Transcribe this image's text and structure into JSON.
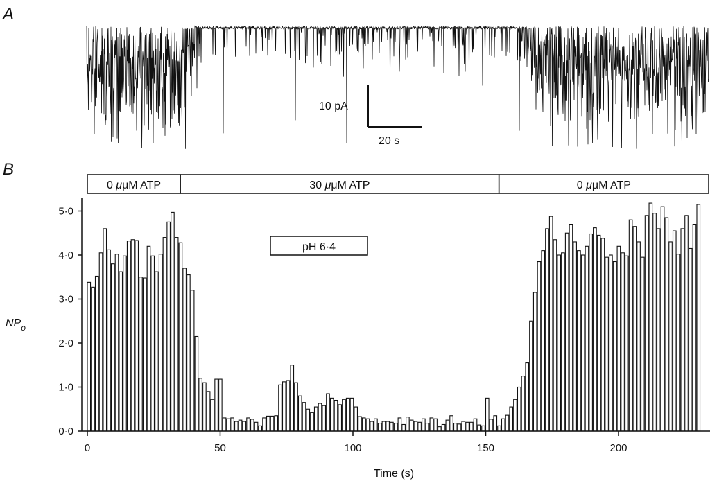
{
  "panel_a": {
    "letter": "A",
    "scale_bar_y_label": "10 pA",
    "scale_bar_x_label": "20 s"
  },
  "panel_b": {
    "letter": "B",
    "atp_bar": [
      {
        "label_value": "0",
        "label_unit": "μM ATP",
        "t_start": 0,
        "t_end": 35
      },
      {
        "label_value": "30",
        "label_unit": "μM ATP",
        "t_start": 35,
        "t_end": 155
      },
      {
        "label_value": "0",
        "label_unit": "μM ATP",
        "t_start": 155,
        "t_end": 235
      }
    ],
    "ph_label": "pH 6·4",
    "y_axis_main": "NP",
    "y_axis_sub": "o",
    "x_axis_title": "Time (s)"
  },
  "chart_data": [
    {
      "type": "line",
      "title": "",
      "description_panel": "A",
      "xlabel": "",
      "ylabel": "",
      "scale_bar": {
        "current_pA": 10,
        "time_s": 20
      }
    },
    {
      "type": "bar",
      "title": "",
      "xlabel": "Time (s)",
      "ylabel": "NPo",
      "xlim": [
        0,
        235
      ],
      "ylim": [
        0,
        5.2
      ],
      "bin_width_s": 1.5,
      "x_ticks": [
        0,
        50,
        100,
        150,
        200
      ],
      "x_tick_labels": [
        "0",
        "50",
        "100",
        "150",
        "200"
      ],
      "y_ticks": [
        0,
        1,
        2,
        3,
        4,
        5
      ],
      "y_tick_labels": [
        "0·0",
        "1·0",
        "2·0",
        "3·0",
        "4·0",
        "5·0"
      ],
      "values": [
        3.38,
        3.27,
        3.52,
        4.05,
        4.6,
        4.12,
        3.8,
        4.02,
        3.62,
        3.98,
        4.32,
        4.35,
        4.33,
        3.5,
        3.48,
        4.2,
        3.98,
        3.62,
        4.02,
        4.4,
        4.75,
        4.97,
        4.4,
        4.28,
        3.7,
        3.55,
        3.2,
        2.15,
        1.2,
        1.1,
        0.9,
        0.72,
        1.18,
        1.18,
        0.3,
        0.28,
        0.3,
        0.22,
        0.25,
        0.22,
        0.3,
        0.27,
        0.2,
        0.12,
        0.3,
        0.34,
        0.34,
        0.35,
        1.05,
        1.12,
        1.15,
        1.5,
        1.1,
        0.8,
        0.65,
        0.5,
        0.42,
        0.55,
        0.63,
        0.58,
        0.85,
        0.75,
        0.7,
        0.6,
        0.72,
        0.75,
        0.75,
        0.55,
        0.33,
        0.3,
        0.28,
        0.22,
        0.28,
        0.18,
        0.22,
        0.22,
        0.2,
        0.18,
        0.3,
        0.15,
        0.32,
        0.25,
        0.22,
        0.2,
        0.28,
        0.18,
        0.3,
        0.28,
        0.1,
        0.15,
        0.25,
        0.35,
        0.18,
        0.16,
        0.22,
        0.2,
        0.2,
        0.28,
        0.14,
        0.12,
        0.75,
        0.27,
        0.35,
        0.12,
        0.28,
        0.36,
        0.55,
        0.72,
        1.0,
        1.25,
        1.55,
        2.5,
        3.15,
        3.85,
        4.1,
        4.6,
        4.88,
        4.35,
        4.0,
        4.05,
        4.5,
        4.7,
        4.3,
        4.1,
        4.0,
        4.2,
        4.48,
        4.62,
        4.45,
        4.38,
        3.95,
        4.0,
        3.85,
        4.2,
        4.05,
        3.98,
        4.8,
        4.65,
        4.3,
        3.95,
        4.9,
        5.18,
        4.95,
        4.6,
        5.1,
        4.85,
        4.3,
        4.55,
        4.02,
        4.6,
        4.9,
        4.15,
        4.7,
        5.15
      ]
    }
  ]
}
